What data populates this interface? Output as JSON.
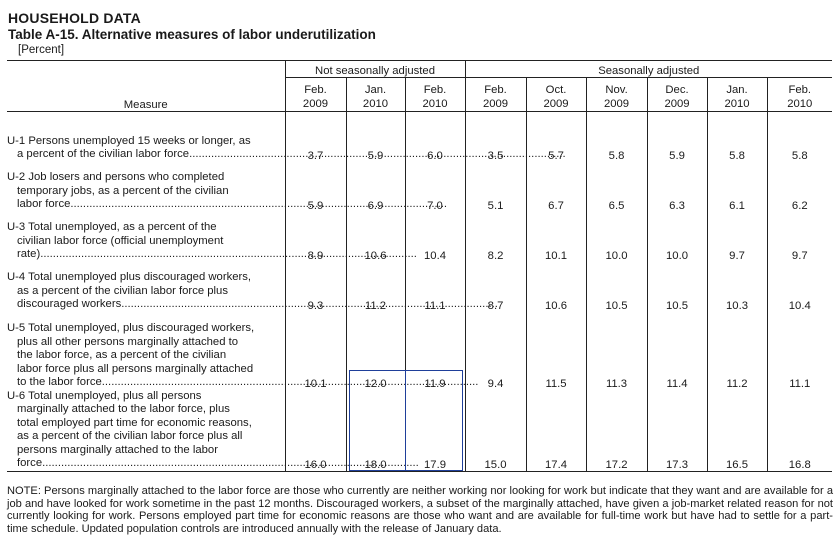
{
  "header": {
    "section": "HOUSEHOLD DATA",
    "title": "Table A-15. Alternative measures of labor underutilization",
    "unit": "[Percent]"
  },
  "table": {
    "measure_header": "Measure",
    "groups": [
      {
        "label": "Not seasonally adjusted"
      },
      {
        "label": "Seasonally adjusted"
      }
    ],
    "columns": [
      {
        "month": "Feb.",
        "year": "2009"
      },
      {
        "month": "Jan.",
        "year": "2010"
      },
      {
        "month": "Feb.",
        "year": "2010"
      },
      {
        "month": "Feb.",
        "year": "2009"
      },
      {
        "month": "Oct.",
        "year": "2009"
      },
      {
        "month": "Nov.",
        "year": "2009"
      },
      {
        "month": "Dec.",
        "year": "2009"
      },
      {
        "month": "Jan.",
        "year": "2010"
      },
      {
        "month": "Feb.",
        "year": "2010"
      }
    ],
    "rows": [
      {
        "first_line": "U-1 Persons unemployed 15 weeks or longer, as",
        "middle_lines": [],
        "last_line": "a percent of the civilian labor force",
        "values": [
          "3.7",
          "5.9",
          "6.0",
          "3.5",
          "5.7",
          "5.8",
          "5.9",
          "5.8",
          "5.8"
        ]
      },
      {
        "first_line": "U-2 Job losers and persons who completed",
        "middle_lines": [
          "temporary jobs, as a percent of the civilian"
        ],
        "last_line": "labor force",
        "values": [
          "5.9",
          "6.9",
          "7.0",
          "5.1",
          "6.7",
          "6.5",
          "6.3",
          "6.1",
          "6.2"
        ]
      },
      {
        "first_line": "U-3 Total unemployed, as a percent of the",
        "middle_lines": [
          "civilian labor force (official unemployment"
        ],
        "last_line": "rate)",
        "values": [
          "8.9",
          "10.6",
          "10.4",
          "8.2",
          "10.1",
          "10.0",
          "10.0",
          "9.7",
          "9.7"
        ]
      },
      {
        "first_line": "U-4 Total unemployed plus discouraged workers,",
        "middle_lines": [
          "as a percent of the civilian labor force plus"
        ],
        "last_line": "discouraged workers",
        "values": [
          "9.3",
          "11.2",
          "11.1",
          "8.7",
          "10.6",
          "10.5",
          "10.5",
          "10.3",
          "10.4"
        ]
      },
      {
        "first_line": "U-5 Total unemployed, plus discouraged workers,",
        "middle_lines": [
          "plus all other persons marginally attached to",
          "the labor force, as a percent of the civilian",
          "labor force plus all persons marginally attached"
        ],
        "last_line": "to the labor force",
        "values": [
          "10.1",
          "12.0",
          "11.9",
          "9.4",
          "11.5",
          "11.3",
          "11.4",
          "11.2",
          "11.1"
        ]
      },
      {
        "first_line": "U-6 Total unemployed, plus all persons",
        "middle_lines": [
          "marginally attached to the labor force, plus",
          "total employed part time for economic reasons,",
          "as a percent of the civilian labor force plus all",
          "persons marginally attached to the labor"
        ],
        "last_line": "force",
        "values": [
          "16.0",
          "18.0",
          "17.9",
          "15.0",
          "17.4",
          "17.2",
          "17.3",
          "16.5",
          "16.8"
        ]
      }
    ],
    "highlight": {
      "row": 5,
      "columns": [
        1,
        2
      ],
      "color": "#1f3f9a"
    }
  },
  "note": "NOTE: Persons marginally attached to the labor force are those who currently are neither working nor looking for work but indicate that they want and are available for a job and have looked for work sometime in the past 12 months. Discouraged workers, a subset of the marginally attached, have given a job-market related reason for not currently looking for work. Persons employed part time for economic reasons are those who want and are available for full-time work but have had to settle for a part-time schedule. Updated population controls are introduced annually with the release of January data."
}
